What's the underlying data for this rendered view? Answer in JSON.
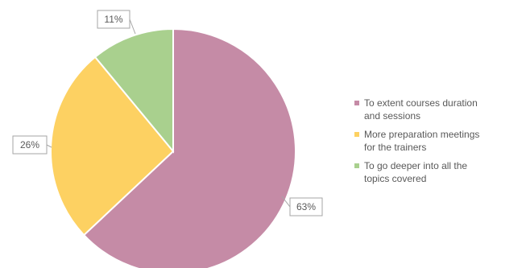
{
  "chart_data": {
    "type": "pie",
    "title": "",
    "slices": [
      {
        "label": "To extent courses duration\nand sessions",
        "value": 63,
        "display": "63%",
        "color": "#c58ba6"
      },
      {
        "label": "More preparation meetings\nfor the trainers",
        "value": 26,
        "display": "26%",
        "color": "#fdd162"
      },
      {
        "label": "To go deeper into all the\ntopics covered",
        "value": 11,
        "display": "11%",
        "color": "#a9d08e"
      }
    ],
    "legend_position": "right"
  }
}
